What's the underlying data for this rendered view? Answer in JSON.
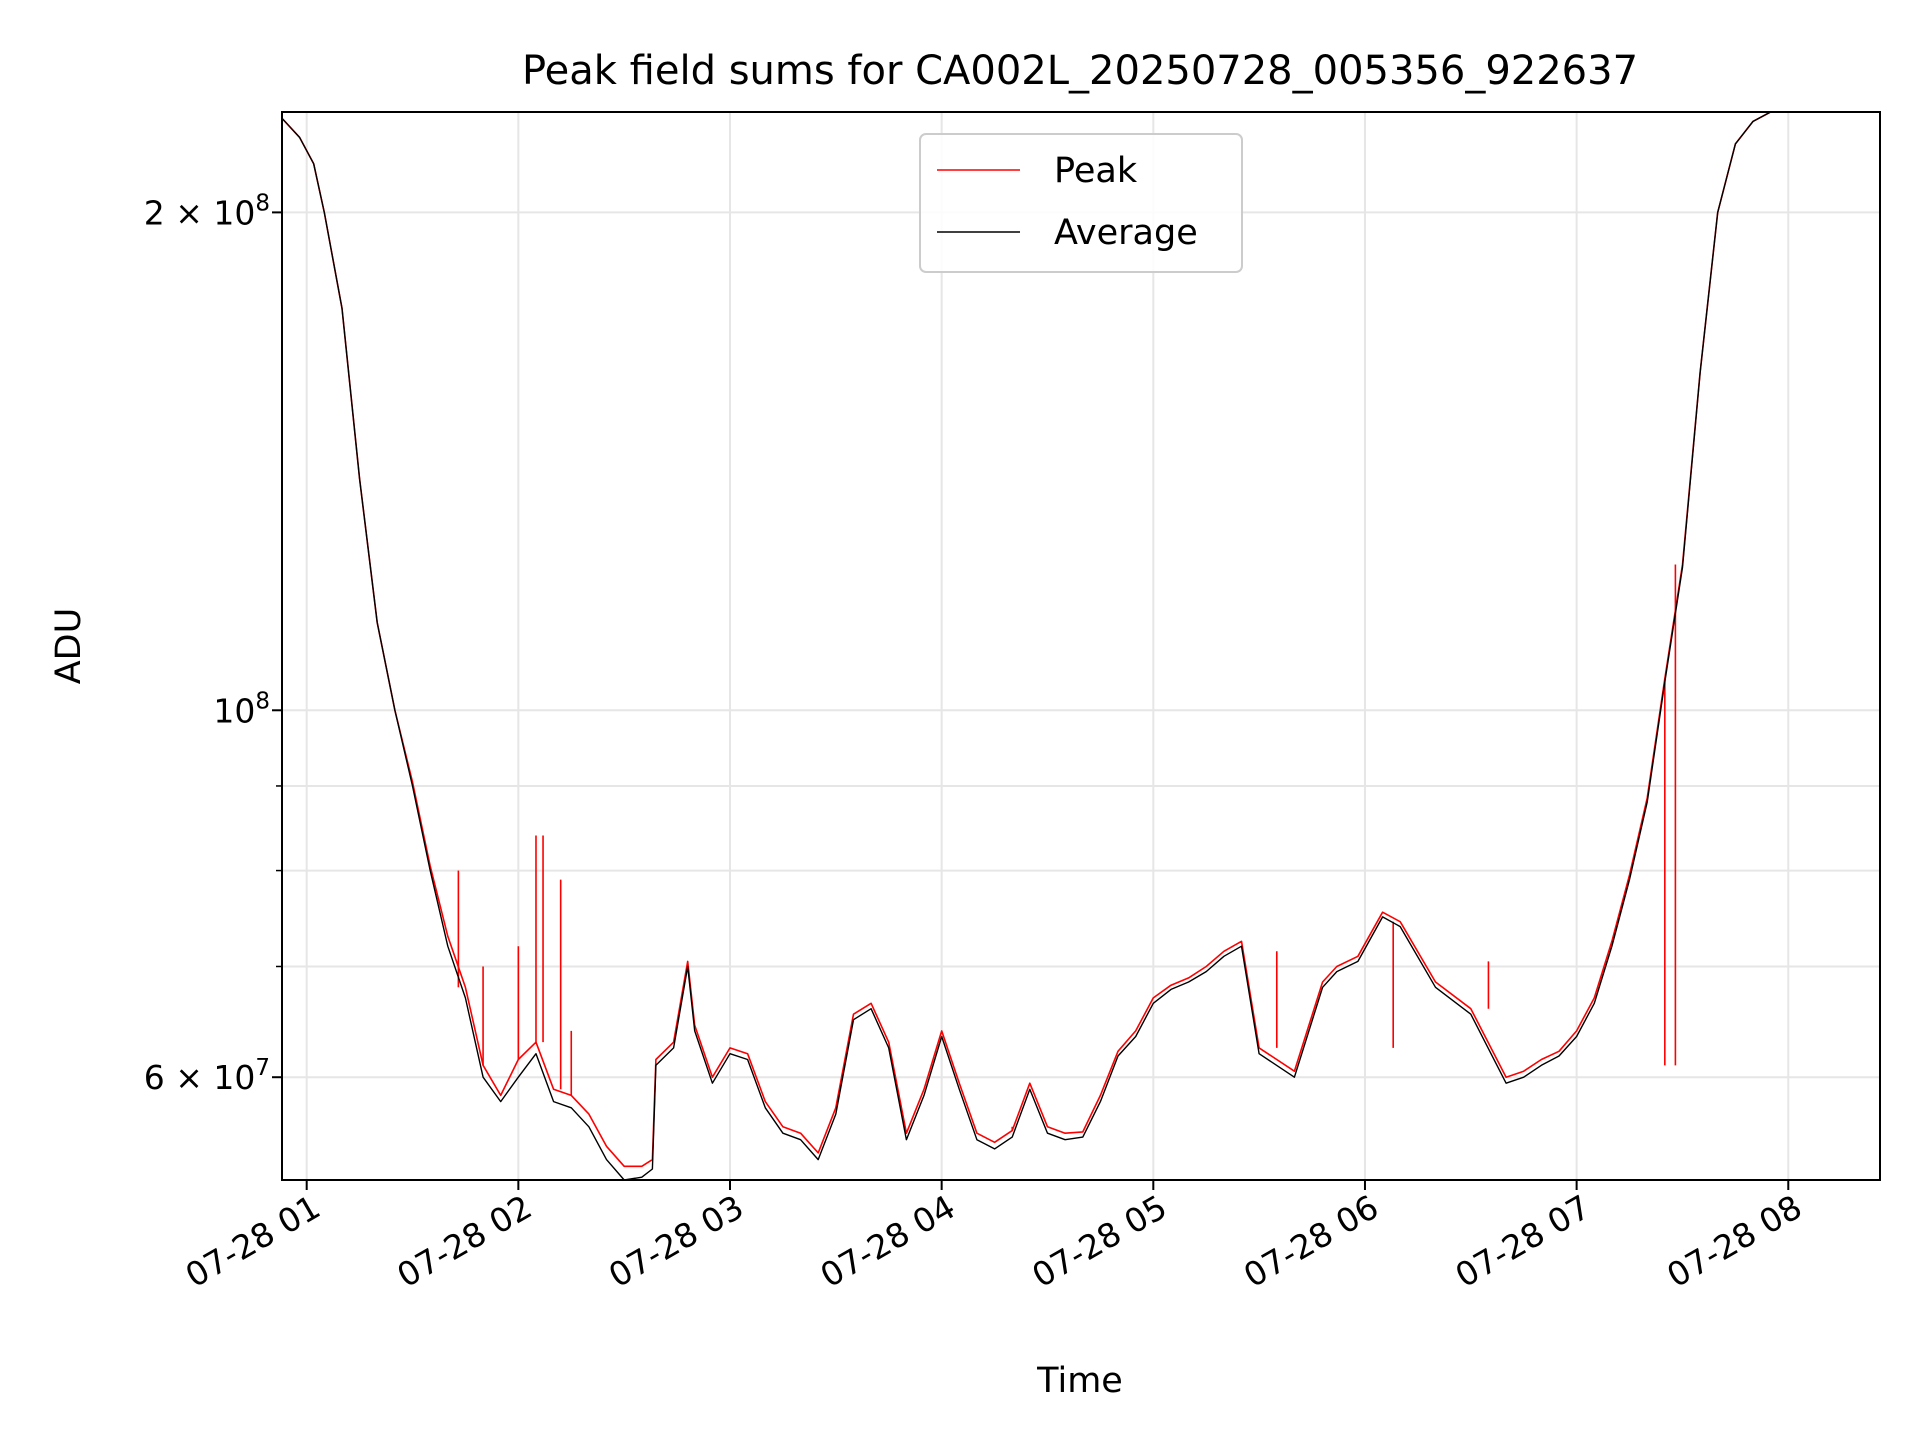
{
  "chart_data": {
    "type": "line",
    "title": "Peak field sums for CA002L_20250728_005356_922637",
    "xlabel": "Time",
    "ylabel": "ADU",
    "yscale": "log",
    "grid": true,
    "legend_position": "top-center",
    "xlim": [
      "2025-07-28 00:53",
      "2025-07-28 08:26"
    ],
    "ylim": [
      52000000,
      230000000
    ],
    "x_ticks": [
      "07-28 01",
      "07-28 02",
      "07-28 03",
      "07-28 04",
      "07-28 05",
      "07-28 06",
      "07-28 07",
      "07-28 08"
    ],
    "x_tick_times": [
      "2025-07-28 01:00",
      "2025-07-28 02:00",
      "2025-07-28 03:00",
      "2025-07-28 04:00",
      "2025-07-28 05:00",
      "2025-07-28 06:00",
      "2025-07-28 07:00",
      "2025-07-28 08:00"
    ],
    "y_major_ticks": [
      {
        "value": 200000000,
        "label": "2 × 10^8"
      },
      {
        "value": 100000000,
        "label": "10^8"
      },
      {
        "value": 60000000,
        "label": "6 × 10^7"
      }
    ],
    "y_label_parts": {
      "two_e8": {
        "mantissa": "2 × 10",
        "exp": "8"
      },
      "one_e8": {
        "mantissa": "10",
        "exp": "8"
      },
      "six_e7": {
        "mantissa": "6 × 10",
        "exp": "7"
      }
    },
    "y_minor_ticks": [
      70000000,
      80000000,
      90000000
    ],
    "series": [
      {
        "name": "Average",
        "color": "#000000",
        "x": [
          "2025-07-28 00:53",
          "2025-07-28 00:58",
          "2025-07-28 01:02",
          "2025-07-28 01:05",
          "2025-07-28 01:10",
          "2025-07-28 01:15",
          "2025-07-28 01:20",
          "2025-07-28 01:25",
          "2025-07-28 01:30",
          "2025-07-28 01:35",
          "2025-07-28 01:40",
          "2025-07-28 01:45",
          "2025-07-28 01:50",
          "2025-07-28 01:55",
          "2025-07-28 02:00",
          "2025-07-28 02:05",
          "2025-07-28 02:10",
          "2025-07-28 02:15",
          "2025-07-28 02:20",
          "2025-07-28 02:25",
          "2025-07-28 02:30",
          "2025-07-28 02:35",
          "2025-07-28 02:38",
          "2025-07-28 02:39",
          "2025-07-28 02:44",
          "2025-07-28 02:48",
          "2025-07-28 02:50",
          "2025-07-28 02:55",
          "2025-07-28 03:00",
          "2025-07-28 03:05",
          "2025-07-28 03:10",
          "2025-07-28 03:15",
          "2025-07-28 03:20",
          "2025-07-28 03:25",
          "2025-07-28 03:30",
          "2025-07-28 03:35",
          "2025-07-28 03:40",
          "2025-07-28 03:45",
          "2025-07-28 03:50",
          "2025-07-28 03:55",
          "2025-07-28 04:00",
          "2025-07-28 04:05",
          "2025-07-28 04:10",
          "2025-07-28 04:15",
          "2025-07-28 04:20",
          "2025-07-28 04:25",
          "2025-07-28 04:30",
          "2025-07-28 04:35",
          "2025-07-28 04:40",
          "2025-07-28 04:45",
          "2025-07-28 04:50",
          "2025-07-28 04:55",
          "2025-07-28 05:00",
          "2025-07-28 05:05",
          "2025-07-28 05:10",
          "2025-07-28 05:15",
          "2025-07-28 05:20",
          "2025-07-28 05:25",
          "2025-07-28 05:30",
          "2025-07-28 05:40",
          "2025-07-28 05:48",
          "2025-07-28 05:52",
          "2025-07-28 05:58",
          "2025-07-28 06:05",
          "2025-07-28 06:10",
          "2025-07-28 06:20",
          "2025-07-28 06:30",
          "2025-07-28 06:40",
          "2025-07-28 06:45",
          "2025-07-28 06:50",
          "2025-07-28 06:55",
          "2025-07-28 07:00",
          "2025-07-28 07:05",
          "2025-07-28 07:10",
          "2025-07-28 07:15",
          "2025-07-28 07:20",
          "2025-07-28 07:25",
          "2025-07-28 07:30",
          "2025-07-28 07:35",
          "2025-07-28 07:40",
          "2025-07-28 07:45",
          "2025-07-28 07:50",
          "2025-07-28 07:55",
          "2025-07-28 08:00",
          "2025-07-28 08:05",
          "2025-07-28 08:10",
          "2025-07-28 08:15",
          "2025-07-28 08:20",
          "2025-07-28 08:26"
        ],
        "values": [
          228000000,
          222000000,
          214000000,
          200000000,
          175000000,
          138000000,
          113000000,
          100000000,
          90000000,
          80000000,
          72000000,
          67000000,
          60000000,
          58000000,
          60000000,
          62000000,
          58000000,
          57500000,
          56000000,
          53500000,
          52000000,
          52200000,
          52800000,
          61000000,
          62500000,
          70000000,
          64000000,
          59500000,
          62000000,
          61500000,
          57500000,
          55500000,
          55000000,
          53500000,
          57000000,
          65000000,
          66000000,
          62500000,
          55000000,
          58500000,
          63500000,
          59000000,
          55000000,
          54300000,
          55200000,
          59000000,
          55500000,
          55000000,
          55200000,
          58000000,
          61800000,
          63500000,
          66500000,
          67800000,
          68500000,
          69500000,
          71000000,
          72000000,
          62000000,
          60000000,
          68000000,
          69500000,
          70500000,
          75000000,
          74000000,
          68000000,
          65500000,
          59500000,
          60000000,
          61000000,
          61800000,
          63500000,
          66500000,
          72000000,
          79000000,
          88000000,
          104000000,
          122000000,
          160000000,
          200000000,
          220000000,
          227000000,
          230000000,
          230000000,
          230000000,
          230000000,
          230000000,
          230000000,
          230000000
        ]
      },
      {
        "name": "Peak",
        "color": "#ff0000",
        "x": [
          "2025-07-28 00:53",
          "2025-07-28 00:58",
          "2025-07-28 01:02",
          "2025-07-28 01:05",
          "2025-07-28 01:10",
          "2025-07-28 01:15",
          "2025-07-28 01:20",
          "2025-07-28 01:25",
          "2025-07-28 01:30",
          "2025-07-28 01:35",
          "2025-07-28 01:40",
          "2025-07-28 01:45",
          "2025-07-28 01:50",
          "2025-07-28 01:55",
          "2025-07-28 02:00",
          "2025-07-28 02:05",
          "2025-07-28 02:10",
          "2025-07-28 02:15",
          "2025-07-28 02:20",
          "2025-07-28 02:25",
          "2025-07-28 02:30",
          "2025-07-28 02:35",
          "2025-07-28 02:38",
          "2025-07-28 02:39",
          "2025-07-28 02:44",
          "2025-07-28 02:48",
          "2025-07-28 02:50",
          "2025-07-28 02:55",
          "2025-07-28 03:00",
          "2025-07-28 03:05",
          "2025-07-28 03:10",
          "2025-07-28 03:15",
          "2025-07-28 03:20",
          "2025-07-28 03:25",
          "2025-07-28 03:30",
          "2025-07-28 03:35",
          "2025-07-28 03:40",
          "2025-07-28 03:45",
          "2025-07-28 03:50",
          "2025-07-28 03:55",
          "2025-07-28 04:00",
          "2025-07-28 04:05",
          "2025-07-28 04:10",
          "2025-07-28 04:15",
          "2025-07-28 04:20",
          "2025-07-28 04:25",
          "2025-07-28 04:30",
          "2025-07-28 04:35",
          "2025-07-28 04:40",
          "2025-07-28 04:45",
          "2025-07-28 04:50",
          "2025-07-28 04:55",
          "2025-07-28 05:00",
          "2025-07-28 05:05",
          "2025-07-28 05:10",
          "2025-07-28 05:15",
          "2025-07-28 05:20",
          "2025-07-28 05:25",
          "2025-07-28 05:30",
          "2025-07-28 05:40",
          "2025-07-28 05:48",
          "2025-07-28 05:52",
          "2025-07-28 05:58",
          "2025-07-28 06:05",
          "2025-07-28 06:10",
          "2025-07-28 06:20",
          "2025-07-28 06:30",
          "2025-07-28 06:40",
          "2025-07-28 06:45",
          "2025-07-28 06:50",
          "2025-07-28 06:55",
          "2025-07-28 07:00",
          "2025-07-28 07:05",
          "2025-07-28 07:10",
          "2025-07-28 07:15",
          "2025-07-28 07:20",
          "2025-07-28 07:25",
          "2025-07-28 07:30",
          "2025-07-28 07:35",
          "2025-07-28 07:40",
          "2025-07-28 07:45",
          "2025-07-28 07:50",
          "2025-07-28 07:55",
          "2025-07-28 08:00",
          "2025-07-28 08:05",
          "2025-07-28 08:10",
          "2025-07-28 08:15",
          "2025-07-28 08:20",
          "2025-07-28 08:26"
        ],
        "values": [
          228000000,
          222000000,
          214000000,
          200000000,
          175000000,
          138000000,
          113000000,
          100000000,
          90500000,
          80500000,
          73000000,
          68000000,
          61000000,
          58500000,
          61500000,
          63000000,
          59000000,
          58500000,
          57000000,
          54500000,
          53000000,
          53000000,
          53500000,
          61500000,
          63000000,
          70500000,
          64500000,
          60000000,
          62500000,
          62000000,
          58000000,
          56000000,
          55500000,
          54000000,
          57500000,
          65500000,
          66500000,
          63000000,
          55500000,
          59000000,
          64000000,
          59500000,
          55500000,
          54800000,
          55700000,
          59500000,
          56000000,
          55500000,
          55600000,
          58500000,
          62200000,
          64000000,
          67000000,
          68200000,
          68900000,
          70000000,
          71500000,
          72500000,
          62500000,
          60500000,
          68500000,
          70000000,
          71000000,
          75500000,
          74500000,
          68500000,
          66000000,
          60000000,
          60500000,
          61500000,
          62200000,
          64000000,
          67000000,
          72500000,
          79500000,
          88500000,
          104500000,
          122500000,
          160000000,
          200000000,
          220000000,
          227000000,
          230000000,
          230000000,
          230000000,
          230000000,
          230000000,
          230000000,
          230000000
        ],
        "spikes": [
          {
            "x": "2025-07-28 01:43",
            "y": 80000000
          },
          {
            "x": "2025-07-28 01:50",
            "y": 70000000
          },
          {
            "x": "2025-07-28 02:00",
            "y": 72000000
          },
          {
            "x": "2025-07-28 02:05",
            "y": 84000000
          },
          {
            "x": "2025-07-28 02:07",
            "y": 84000000
          },
          {
            "x": "2025-07-28 02:12",
            "y": 79000000
          },
          {
            "x": "2025-07-28 02:15",
            "y": 64000000
          },
          {
            "x": "2025-07-28 04:20",
            "y": 56000000
          },
          {
            "x": "2025-07-28 05:35",
            "y": 71500000
          },
          {
            "x": "2025-07-28 06:08",
            "y": 62500000
          },
          {
            "x": "2025-07-28 06:35",
            "y": 70500000
          },
          {
            "x": "2025-07-28 07:25",
            "y": 61000000
          },
          {
            "x": "2025-07-28 07:28",
            "y": 61000000
          }
        ]
      }
    ]
  }
}
